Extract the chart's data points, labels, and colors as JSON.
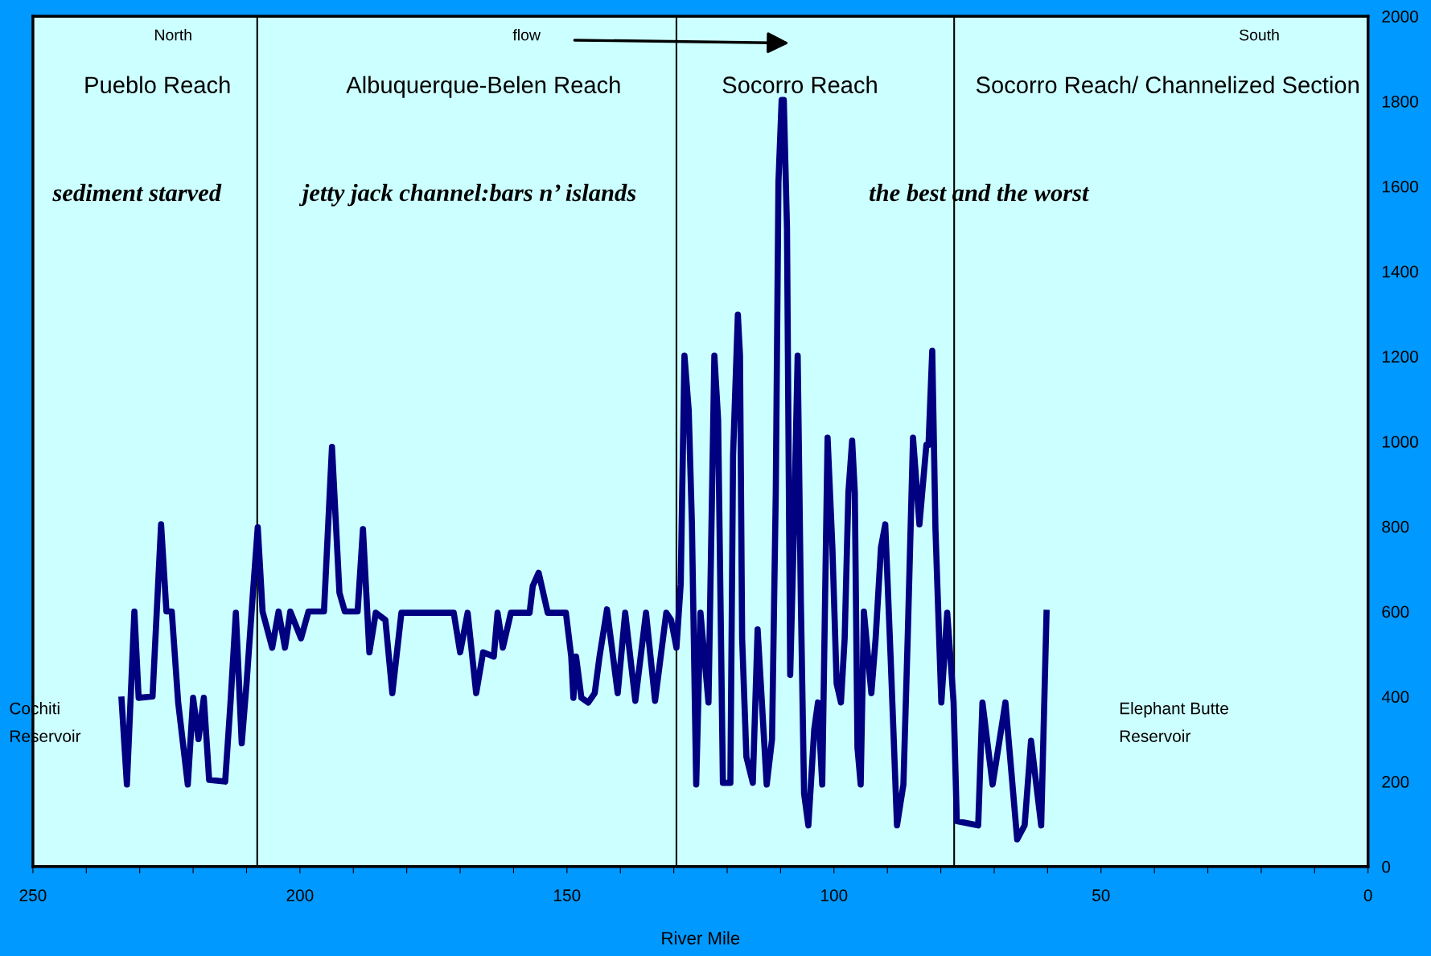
{
  "chart_data": {
    "type": "line",
    "xlabel": "River Mile",
    "x": [
      233.4,
      232.4,
      231,
      230.2,
      227.6,
      226,
      225,
      224,
      222.8,
      221,
      220,
      219,
      218,
      217,
      214,
      213,
      212,
      210.9,
      210,
      208.8,
      207.9,
      207,
      205.2,
      204,
      202.8,
      201.8,
      199.8,
      198.4,
      195.5,
      194,
      192.6,
      191.6,
      189.2,
      188.2,
      187,
      185.8,
      184,
      182.7,
      181,
      171.2,
      170,
      168.6,
      167,
      165.7,
      163.7,
      163,
      162,
      160.5,
      157,
      156.4,
      155.3,
      153.6,
      150.2,
      149.2,
      148.8,
      148.3,
      147.3,
      146,
      144.8,
      143.9,
      142.5,
      140.5,
      139.1,
      137.2,
      135.2,
      133.5,
      131.4,
      130.5,
      129.5,
      128.7,
      128,
      127.2,
      126.6,
      125.8,
      125,
      123.5,
      122.4,
      121.7,
      120.8,
      119.4,
      118.9,
      118,
      117.6,
      117.2,
      116.4,
      115.2,
      114.3,
      112.6,
      111.6,
      110.9,
      110.4,
      109.8,
      109.4,
      108.8,
      108.2,
      107.5,
      106.8,
      106.2,
      105.6,
      104.8,
      103.7,
      103,
      102.2,
      101.2,
      100.3,
      99.5,
      98.7,
      98,
      97.3,
      96.6,
      96.1,
      95.6,
      95,
      94.4,
      93,
      92.2,
      91.2,
      90.4,
      89.4,
      88.2,
      87,
      86.2,
      85.2,
      84,
      82.7,
      82.3,
      81.6,
      81,
      79.9,
      78.8,
      77.6,
      77,
      73,
      72.2,
      70.3,
      67.9,
      65.7,
      64.3,
      63.1,
      61.2,
      60.2
    ],
    "series": [
      {
        "color": "#000080",
        "values": [
          393,
          193,
          600,
          397,
          400,
          805,
          600,
          600,
          386,
          193,
          397,
          300,
          397,
          204,
          200,
          386,
          597,
          290,
          430,
          644,
          798,
          600,
          515,
          600,
          515,
          600,
          537,
          600,
          600,
          987,
          644,
          600,
          600,
          794,
          504,
          597,
          580,
          408,
          597,
          597,
          504,
          597,
          408,
          504,
          494,
          597,
          515,
          597,
          597,
          660,
          691,
          597,
          597,
          494,
          397,
          494,
          397,
          386,
          408,
          494,
          605,
          408,
          597,
          390,
          597,
          390,
          597,
          580,
          515,
          665,
          1202,
          1073,
          805,
          193,
          597,
          386,
          1202,
          1052,
          197,
          197,
          966,
          1298,
          1202,
          537,
          258,
          197,
          558,
          193,
          300,
          880,
          1610,
          1803,
          1803,
          1502,
          451,
          794,
          1202,
          622,
          172,
          97,
          322,
          386,
          193,
          1009,
          751,
          430,
          386,
          537,
          880,
          1002,
          880,
          279,
          193,
          600,
          408,
          537,
          751,
          805,
          494,
          97,
          193,
          537,
          1009,
          805,
          992,
          992,
          1213,
          794,
          386,
          597,
          386,
          107,
          97,
          386,
          193,
          386,
          64,
          97,
          296,
          97,
          597
        ]
      }
    ],
    "xlim": [
      250,
      0
    ],
    "ylim": [
      0,
      2000
    ],
    "xticks": [
      250,
      {
        "value": 240,
        "label": null
      },
      {
        "value": 230,
        "label": null
      },
      {
        "value": 220,
        "label": null
      },
      {
        "value": 210,
        "label": null
      },
      200,
      {
        "value": 190,
        "label": null
      },
      {
        "value": 180,
        "label": null
      },
      {
        "value": 170,
        "label": null
      },
      {
        "value": 160,
        "label": null
      },
      150,
      {
        "value": 140,
        "label": null
      },
      {
        "value": 130,
        "label": null
      },
      {
        "value": 120,
        "label": null
      },
      {
        "value": 110,
        "label": null
      },
      100,
      {
        "value": 90,
        "label": null
      },
      {
        "value": 80,
        "label": null
      },
      {
        "value": 70,
        "label": null
      },
      {
        "value": 60,
        "label": null
      },
      50,
      {
        "value": 40,
        "label": null
      },
      {
        "value": 30,
        "label": null
      },
      {
        "value": 20,
        "label": null
      },
      {
        "value": 10,
        "label": null
      },
      0
    ],
    "yticks": [
      0,
      200,
      400,
      600,
      800,
      1000,
      1200,
      1400,
      1600,
      1800,
      2000
    ],
    "ref_lines": [
      {
        "axis": "x",
        "value": 208,
        "color": "#000000"
      },
      {
        "axis": "x",
        "value": 129.5,
        "color": "#000000"
      },
      {
        "axis": "x",
        "value": 77.5,
        "color": "#000000"
      }
    ],
    "annotations": [
      "North",
      "flow",
      "South",
      "Pueblo Reach",
      "Albuquerque-Belen Reach",
      "Socorro Reach",
      "Socorro Reach/ Channelized Section",
      "sediment starved",
      "jetty jack channel:bars n’ islands",
      "the best and the worst",
      "Cochiti\nReservoir",
      "Elephant Butte\nReservoir"
    ],
    "grid": false,
    "legend": false,
    "marker": "none",
    "line_style": "solid"
  }
}
